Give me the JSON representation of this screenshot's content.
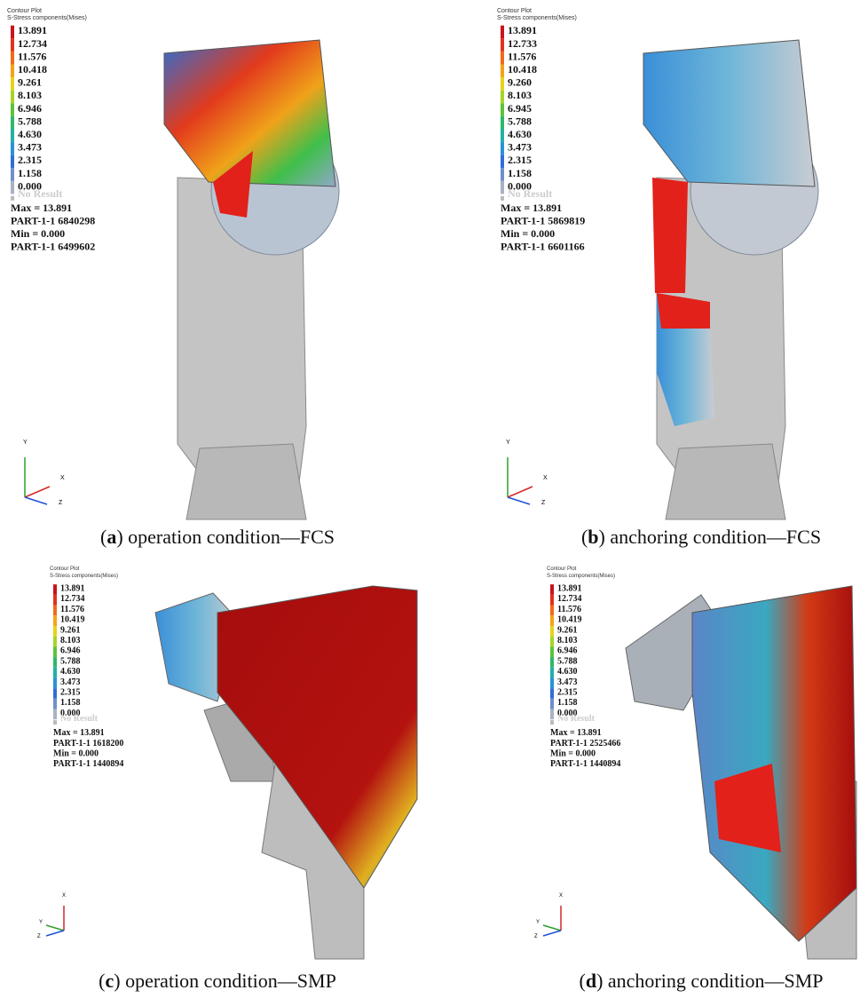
{
  "panels": [
    {
      "legend": {
        "title": "Contour Plot",
        "subtitle": "S-Stress components(Mises)",
        "values": [
          "13.891",
          "12.734",
          "11.576",
          "10.418",
          "9.261",
          "8.103",
          "6.946",
          "5.788",
          "4.630",
          "3.473",
          "2.315",
          "1.158",
          "0.000"
        ],
        "no_result": "No Result"
      },
      "stats": [
        "Max = 13.891",
        "PART-1-1 6840298",
        "Min = 0.000",
        "PART-1-1 6499602"
      ],
      "axes": [
        "Y",
        "X",
        "Z"
      ],
      "caption": [
        "(",
        "a",
        ") operation condition—FCS"
      ]
    },
    {
      "legend": {
        "title": "Contour Plot",
        "subtitle": "S-Stress components(Mises)",
        "values": [
          "13.891",
          "12.733",
          "11.576",
          "10.418",
          "9.260",
          "8.103",
          "6.945",
          "5.788",
          "4.630",
          "3.473",
          "2.315",
          "1.158",
          "0.000"
        ],
        "no_result": "No Result"
      },
      "stats": [
        "Max = 13.891",
        "PART-1-1 5869819",
        "Min = 0.000",
        "PART-1-1 6601166"
      ],
      "axes": [
        "Y",
        "X",
        "Z"
      ],
      "caption": [
        "(",
        "b",
        ") anchoring condition—FCS"
      ]
    },
    {
      "legend": {
        "title": "Contour Plot",
        "subtitle": "S-Stress components(Mises)",
        "values": [
          "13.891",
          "12.734",
          "11.576",
          "10.419",
          "9.261",
          "8.103",
          "6.946",
          "5.788",
          "4.630",
          "3.473",
          "2.315",
          "1.158",
          "0.000"
        ],
        "no_result": "No Result"
      },
      "stats": [
        "Max = 13.891",
        "PART-1-1 1618200",
        "Min = 0.000",
        "PART-1-1 1440894"
      ],
      "axes": [
        "X",
        "Y",
        "Z"
      ],
      "caption": [
        "(",
        "c",
        ") operation condition—SMP"
      ]
    },
    {
      "legend": {
        "title": "Contour Plot",
        "subtitle": "S-Stress components(Mises)",
        "values": [
          "13.891",
          "12.734",
          "11.576",
          "10.419",
          "9.261",
          "8.103",
          "6.946",
          "5.788",
          "4.630",
          "3.473",
          "2.315",
          "1.158",
          "0.000"
        ],
        "no_result": "No Result"
      },
      "stats": [
        "Max = 13.891",
        "PART-1-1 2525466",
        "Min = 0.000",
        "PART-1-1 1440894"
      ],
      "axes": [
        "X",
        "Y",
        "Z"
      ],
      "caption": [
        "(",
        "d",
        ") anchoring condition—SMP"
      ]
    }
  ]
}
